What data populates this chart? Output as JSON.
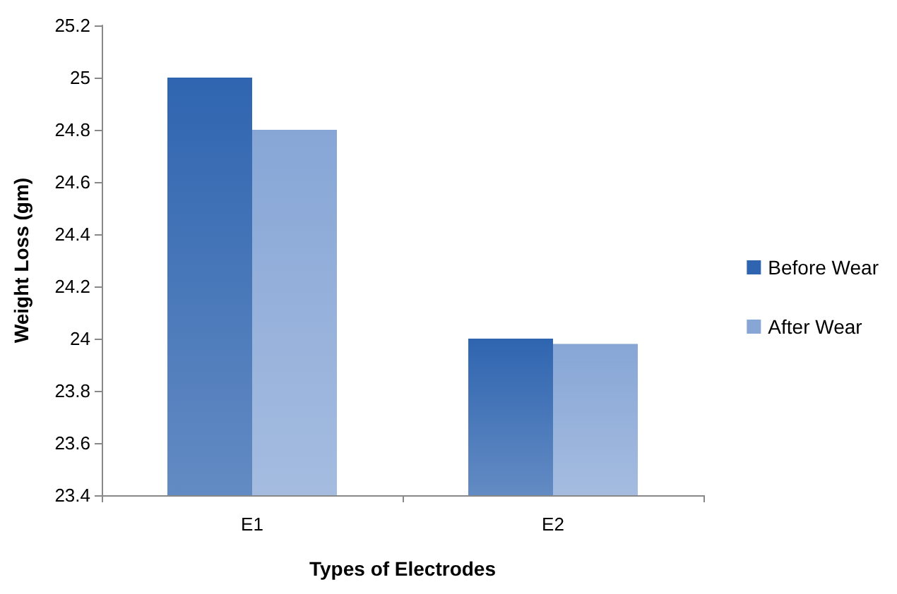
{
  "chart_data": {
    "type": "bar",
    "xlabel": "Types of Electrodes",
    "ylabel": "Weight Loss (gm)",
    "categories": [
      "E1",
      "E2"
    ],
    "series": [
      {
        "name": "Before Wear",
        "color": "#2f65b0",
        "values": [
          25.0,
          24.0
        ]
      },
      {
        "name": "After Wear",
        "color": "#87a6d6",
        "values": [
          24.8,
          23.98
        ]
      }
    ],
    "ylim": [
      23.4,
      25.2
    ],
    "yticks": [
      23.4,
      23.6,
      23.8,
      24,
      24.2,
      24.4,
      24.6,
      24.8,
      25,
      25.2
    ],
    "grid": false,
    "legend": "right"
  }
}
